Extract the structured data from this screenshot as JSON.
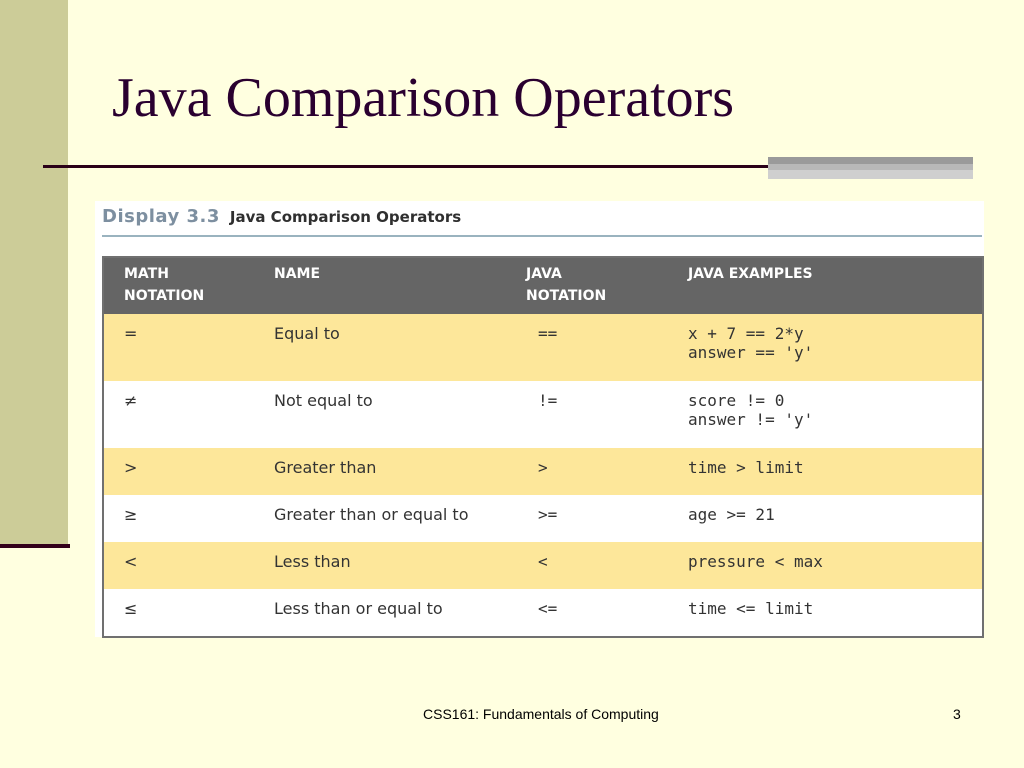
{
  "slide": {
    "title": "Java Comparison Operators",
    "footer": "CSS161: Fundamentals of Computing",
    "page_number": "3"
  },
  "figure": {
    "display_number": "Display 3.3",
    "display_title": "Java Comparison Operators"
  },
  "table": {
    "headers": {
      "math_line1": "MATH",
      "math_line2": "NOTATION",
      "name": "NAME",
      "java_line1": "JAVA",
      "java_line2": "NOTATION",
      "examples": "JAVA EXAMPLES"
    },
    "rows": [
      {
        "math": "=",
        "name": "Equal to",
        "java": "==",
        "example_1": "x + 7 == 2*y",
        "example_2": "answer == 'y'"
      },
      {
        "math": "≠",
        "name": "Not equal to",
        "java": "!=",
        "example_1": "score != 0",
        "example_2": "answer != 'y'"
      },
      {
        "math": ">",
        "name": "Greater than",
        "java": ">",
        "example_1": "time > limit"
      },
      {
        "math": "≥",
        "name": "Greater than or equal to",
        "java": ">=",
        "example_1": "age >= 21"
      },
      {
        "math": "<",
        "name": "Less than",
        "java": "<",
        "example_1": "pressure < max"
      },
      {
        "math": "≤",
        "name": "Less than or equal to",
        "java": "<=",
        "example_1": "time <= limit"
      }
    ]
  },
  "colors": {
    "background": "#ffffe0",
    "side_bar": "#cccc98",
    "title_text": "#2a0030",
    "header_row": "#656565",
    "highlight_row": "#fde79a"
  }
}
